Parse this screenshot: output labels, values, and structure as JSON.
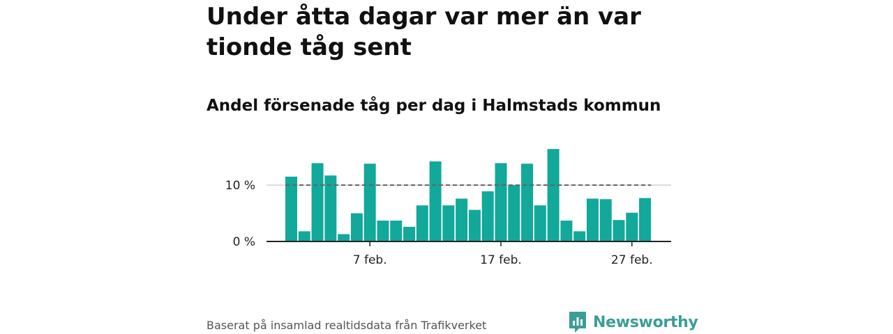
{
  "header": {
    "title": "Under åtta dagar var mer än var tionde tåg sent",
    "subtitle": "Andel försenade tåg per dag i Halmstads kommun"
  },
  "footer": {
    "source": "Baserat på insamlad realtidsdata från Trafikverket",
    "logo_text": "Newsworthy"
  },
  "colors": {
    "bar": "#12a89a",
    "reference_line": "#666666",
    "grid": "#d0d0d0",
    "axis": "#222222",
    "logo": "#3a9e95"
  },
  "chart_data": {
    "type": "bar",
    "x_unit": "day",
    "days": [
      1,
      2,
      3,
      4,
      5,
      6,
      7,
      8,
      9,
      10,
      11,
      12,
      13,
      14,
      15,
      16,
      17,
      18,
      19,
      20,
      21,
      22,
      23,
      24,
      25,
      26,
      27,
      28
    ],
    "values": [
      11.5,
      1.8,
      13.9,
      11.7,
      1.3,
      5.0,
      13.8,
      3.7,
      3.7,
      2.6,
      6.4,
      14.2,
      6.4,
      7.6,
      5.6,
      8.9,
      13.9,
      10.0,
      13.8,
      6.4,
      16.4,
      3.7,
      1.8,
      7.6,
      7.5,
      3.8,
      5.1,
      7.7
    ],
    "reference_line": 10,
    "ylim": [
      0,
      18
    ],
    "y_ticks": [
      {
        "value": 0,
        "label": "0 %"
      },
      {
        "value": 10,
        "label": "10 %"
      }
    ],
    "x_ticks": [
      {
        "day": 7,
        "label": "7 feb."
      },
      {
        "day": 17,
        "label": "17 feb."
      },
      {
        "day": 27,
        "label": "27 feb."
      }
    ],
    "grid": true
  }
}
